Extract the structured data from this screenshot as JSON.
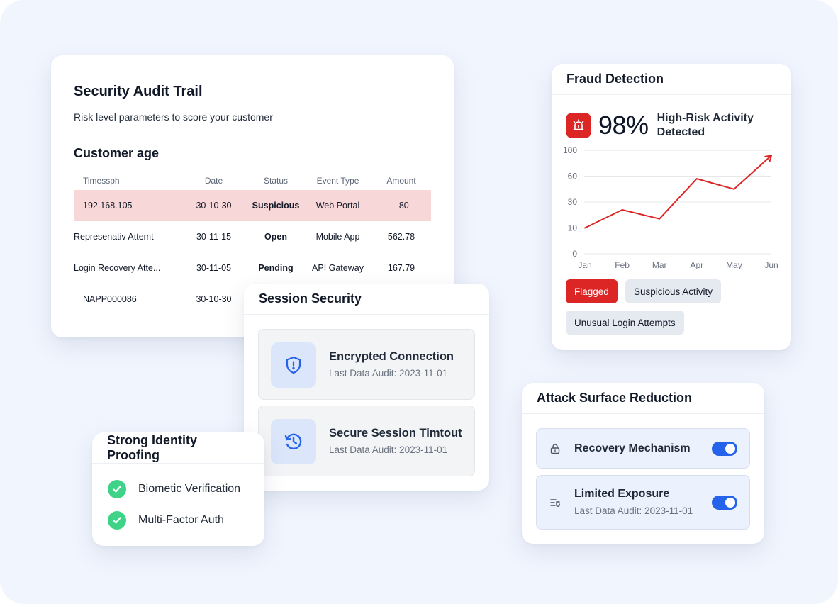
{
  "audit": {
    "title": "Security Audit Trail",
    "subtitle": "Risk level parameters to score your customer",
    "section": "Customer age",
    "columns": [
      "Timessph",
      "Date",
      "Status",
      "Event Type",
      "Amount"
    ],
    "rows": [
      {
        "c1": "192.168.105",
        "c2": "30-10-30",
        "c3": "Suspicious",
        "c4": "Web Portal",
        "c5": "- 80",
        "flagged": true
      },
      {
        "c1": "Represenativ Attemt",
        "c2": "30-11-15",
        "c3": "Open",
        "c4": "Mobile App",
        "c5": "562.78",
        "flagged": false
      },
      {
        "c1": "Login Recovery Atte...",
        "c2": "30-11-05",
        "c3": "Pending",
        "c4": "API Gateway",
        "c5": "167.79",
        "flagged": false
      },
      {
        "c1": "NAPP000086",
        "c2": "30-10-30",
        "c3": "",
        "c4": "",
        "c5": "",
        "flagged": false
      }
    ]
  },
  "fraud": {
    "title": "Fraud Detection",
    "percent": "98%",
    "risk_text": "High-Risk Activity Detected",
    "alarm_icon": "alarm-siren-icon",
    "tags": [
      "Flagged",
      "Suspicious Activity",
      "Unusual Login Attempts"
    ]
  },
  "chart_data": {
    "type": "line",
    "categories": [
      "Jan",
      "Feb",
      "Mar",
      "Apr",
      "May",
      "Jun"
    ],
    "series": [
      {
        "values": [
          10,
          24,
          17,
          57,
          45,
          92
        ],
        "color": "#dc2626"
      }
    ],
    "y_ticks": [
      "100",
      "60",
      "30",
      "10",
      "0"
    ],
    "y_scale": "tick labels evenly spaced (non-linear)",
    "grid": true,
    "arrow_end": true
  },
  "session": {
    "title": "Session Security",
    "items": [
      {
        "title": "Encrypted Connection",
        "sub": "Last Data Audit: 2023-11-01",
        "icon": "shield-alert-icon"
      },
      {
        "title": "Secure Session Timtout",
        "sub": "Last Data Audit: 2023-11-01",
        "icon": "history-clock-icon"
      }
    ]
  },
  "identity": {
    "title": "Strong Identity Proofing",
    "items": [
      "Biometic Verification",
      "Multi-Factor Auth"
    ]
  },
  "attack": {
    "title": "Attack Surface Reduction",
    "items": [
      {
        "title": "Recovery Mechanism",
        "sub": "",
        "icon": "lock-icon",
        "enabled": true
      },
      {
        "title": "Limited Exposure",
        "sub": "Last Data Audit: 2023-11-01",
        "icon": "list-filter-icon",
        "enabled": true
      }
    ]
  },
  "colors": {
    "accent": "#2563eb",
    "danger": "#dc2626",
    "success": "#3fd388",
    "background": "#f1f5fe",
    "flag_row": "#f8d7d8"
  }
}
